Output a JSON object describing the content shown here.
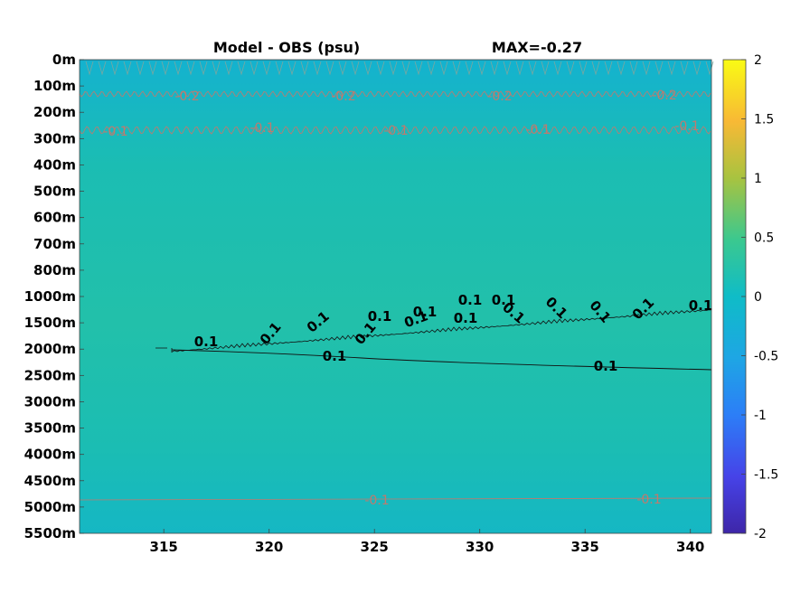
{
  "chart_data": {
    "type": "heatmap",
    "title": "Model - OBS (psu)",
    "max_label": "MAX=-0.27",
    "x_ticks": [
      "315",
      "320",
      "325",
      "330",
      "335",
      "340"
    ],
    "x_tick_values": [
      315,
      320,
      325,
      330,
      335,
      340
    ],
    "xlim": [
      311,
      341
    ],
    "y_ticks": [
      "0m",
      "100m",
      "200m",
      "300m",
      "400m",
      "500m",
      "600m",
      "700m",
      "800m",
      "1000m",
      "1500m",
      "2000m",
      "2500m",
      "3000m",
      "3500m",
      "4000m",
      "4500m",
      "5000m",
      "5500m"
    ],
    "colorbar": {
      "range": [
        -2,
        2
      ],
      "ticks": [
        "2",
        "1.5",
        "1",
        "0.5",
        "0",
        "-0.5",
        "-1",
        "-1.5",
        "-2"
      ],
      "tick_values": [
        2,
        1.5,
        1,
        0.5,
        0,
        -0.5,
        -1,
        -1.5,
        -2
      ],
      "colormap": "parula"
    },
    "field_colors": {
      "surface": "#14b2cf",
      "mid": "#1bbdb3",
      "deep_warm": "#22c0aa",
      "bottom": "#15b7c4"
    },
    "contours": [
      {
        "level": "-0.2",
        "labels": [
          "-0.2",
          "-0.2",
          "-0.2",
          "-0.2"
        ]
      },
      {
        "level": "-0.1",
        "labels": [
          "-0.1",
          "-0.1",
          "-0.1",
          "-0.1",
          "-0.1"
        ]
      },
      {
        "level": "0.1",
        "labels": [
          "0.1",
          "0.1",
          "0.1",
          "0.1",
          "0.1",
          "0.1",
          "0.1",
          "0.1",
          "0.1",
          "0.1",
          "0.1",
          "0.1",
          "0.1",
          "0.1",
          "0.1"
        ]
      },
      {
        "level": "0.1",
        "labels": [
          "0.1",
          "0.1"
        ]
      },
      {
        "level": "-0.1",
        "labels": [
          "-0.1",
          "-0.1"
        ]
      }
    ]
  }
}
